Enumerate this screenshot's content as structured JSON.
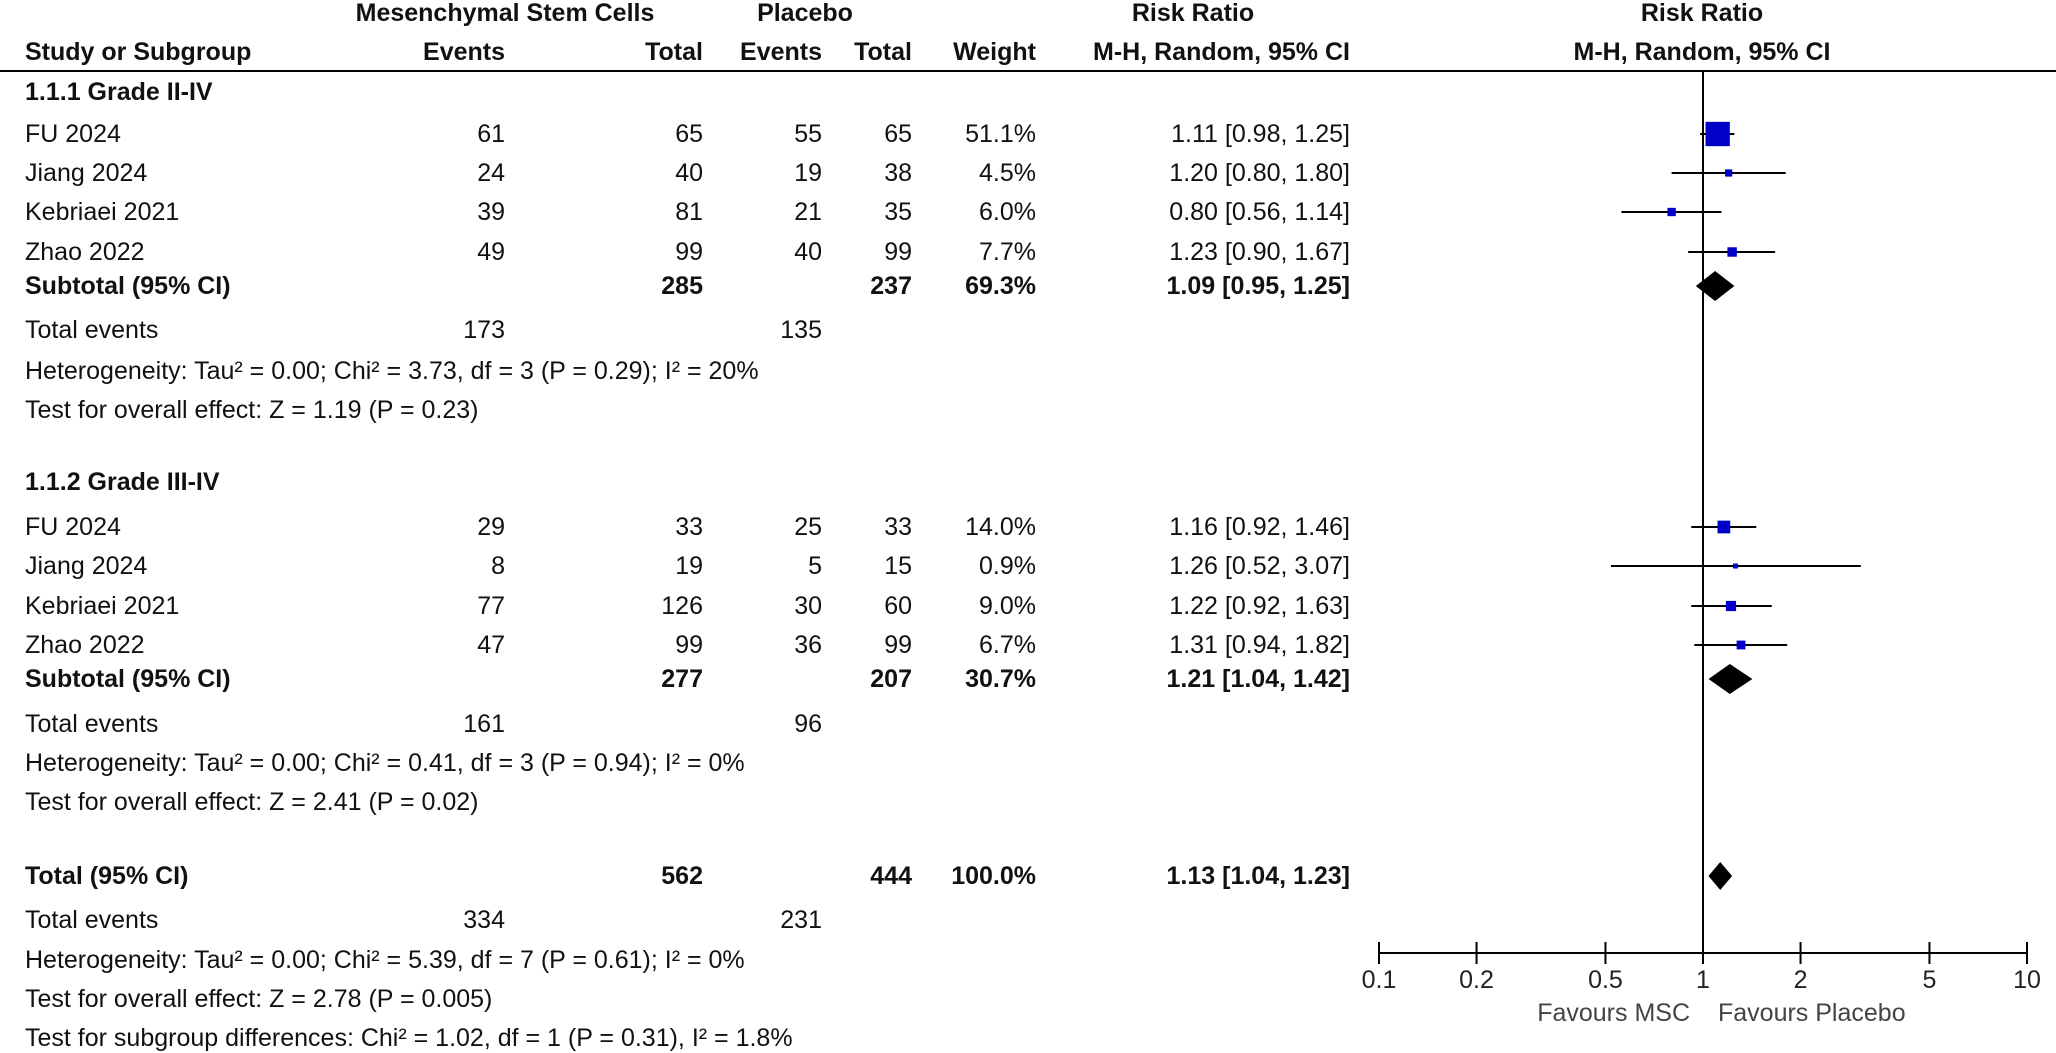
{
  "header": {
    "group1": "Mesenchymal Stem Cells",
    "group2": "Placebo",
    "rr_title": "Risk Ratio",
    "rr_method": "M-H, Random, 95% CI",
    "plot_title": "Risk Ratio",
    "plot_method": "M-H, Random, 95% CI",
    "study": "Study or Subgroup",
    "events1": "Events",
    "total1": "Total",
    "events2": "Events",
    "total2": "Total",
    "weight": "Weight"
  },
  "colors": {
    "study_marker": "#0000c8",
    "diamond": "#000000",
    "line": "#000000"
  },
  "chart_data": {
    "type": "forest",
    "x_scale": "log",
    "xlim": [
      0.1,
      10
    ],
    "x_ticks": [
      "0.1",
      "0.2",
      "0.5",
      "1",
      "2",
      "5",
      "10"
    ],
    "x_tick_values": [
      0.1,
      0.2,
      0.5,
      1,
      2,
      5,
      10
    ],
    "null_line": 1,
    "label_left": "Favours MSC",
    "label_right": "Favours Placebo",
    "subgroups": [
      {
        "title": "1.1.1 Grade II-IV",
        "studies": [
          {
            "name": "FU 2024",
            "e1": "61",
            "n1": "65",
            "e2": "55",
            "n2": "65",
            "weight": "51.1%",
            "ci_text": "1.11 [0.98, 1.25]",
            "rr": 1.11,
            "lo": 0.98,
            "hi": 1.25,
            "w": 51.1
          },
          {
            "name": "Jiang 2024",
            "e1": "24",
            "n1": "40",
            "e2": "19",
            "n2": "38",
            "weight": "4.5%",
            "ci_text": "1.20 [0.80, 1.80]",
            "rr": 1.2,
            "lo": 0.8,
            "hi": 1.8,
            "w": 4.5
          },
          {
            "name": "Kebriaei 2021",
            "e1": "39",
            "n1": "81",
            "e2": "21",
            "n2": "35",
            "weight": "6.0%",
            "ci_text": "0.80 [0.56, 1.14]",
            "rr": 0.8,
            "lo": 0.56,
            "hi": 1.14,
            "w": 6.0
          },
          {
            "name": "Zhao 2022",
            "e1": "49",
            "n1": "99",
            "e2": "40",
            "n2": "99",
            "weight": "7.7%",
            "ci_text": "1.23 [0.90, 1.67]",
            "rr": 1.23,
            "lo": 0.9,
            "hi": 1.67,
            "w": 7.7
          }
        ],
        "subtotal": {
          "label": "Subtotal (95% CI)",
          "n1": "285",
          "n2": "237",
          "weight": "69.3%",
          "ci_text": "1.09 [0.95, 1.25]",
          "rr": 1.09,
          "lo": 0.95,
          "hi": 1.25
        },
        "total_events": {
          "label": "Total events",
          "e1": "173",
          "e2": "135"
        },
        "heterogeneity": "Heterogeneity: Tau² = 0.00; Chi² = 3.73, df = 3 (P = 0.29); I² = 20%",
        "overall_effect": "Test for overall effect: Z = 1.19 (P = 0.23)"
      },
      {
        "title": "1.1.2 Grade III-IV",
        "studies": [
          {
            "name": "FU 2024",
            "e1": "29",
            "n1": "33",
            "e2": "25",
            "n2": "33",
            "weight": "14.0%",
            "ci_text": "1.16 [0.92, 1.46]",
            "rr": 1.16,
            "lo": 0.92,
            "hi": 1.46,
            "w": 14.0
          },
          {
            "name": "Jiang 2024",
            "e1": "8",
            "n1": "19",
            "e2": "5",
            "n2": "15",
            "weight": "0.9%",
            "ci_text": "1.26 [0.52, 3.07]",
            "rr": 1.26,
            "lo": 0.52,
            "hi": 3.07,
            "w": 0.9
          },
          {
            "name": "Kebriaei 2021",
            "e1": "77",
            "n1": "126",
            "e2": "30",
            "n2": "60",
            "weight": "9.0%",
            "ci_text": "1.22 [0.92, 1.63]",
            "rr": 1.22,
            "lo": 0.92,
            "hi": 1.63,
            "w": 9.0
          },
          {
            "name": "Zhao 2022",
            "e1": "47",
            "n1": "99",
            "e2": "36",
            "n2": "99",
            "weight": "6.7%",
            "ci_text": "1.31 [0.94, 1.82]",
            "rr": 1.31,
            "lo": 0.94,
            "hi": 1.82,
            "w": 6.7
          }
        ],
        "subtotal": {
          "label": "Subtotal (95% CI)",
          "n1": "277",
          "n2": "207",
          "weight": "30.7%",
          "ci_text": "1.21 [1.04, 1.42]",
          "rr": 1.21,
          "lo": 1.04,
          "hi": 1.42
        },
        "total_events": {
          "label": "Total events",
          "e1": "161",
          "e2": "96"
        },
        "heterogeneity": "Heterogeneity: Tau² = 0.00; Chi² = 0.41, df = 3 (P = 0.94); I² = 0%",
        "overall_effect": "Test for overall effect: Z = 2.41 (P = 0.02)"
      }
    ],
    "overall": {
      "label": "Total (95% CI)",
      "n1": "562",
      "n2": "444",
      "weight": "100.0%",
      "ci_text": "1.13 [1.04, 1.23]",
      "rr": 1.13,
      "lo": 1.04,
      "hi": 1.23,
      "total_events": {
        "label": "Total events",
        "e1": "334",
        "e2": "231"
      },
      "heterogeneity": "Heterogeneity: Tau² = 0.00; Chi² = 5.39, df = 7 (P = 0.61); I² = 0%",
      "overall_effect": "Test for overall effect: Z = 2.78 (P = 0.005)",
      "subgroup_diff": "Test for subgroup differences: Chi² = 1.02, df = 1 (P = 0.31), I² = 1.8%"
    }
  }
}
